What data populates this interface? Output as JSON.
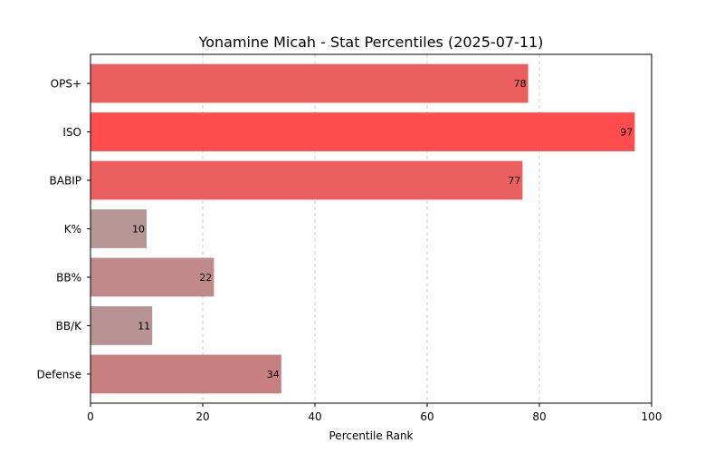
{
  "chart_data": {
    "type": "bar",
    "orientation": "horizontal",
    "title": "Yonamine Micah - Stat Percentiles (2025-07-11)",
    "xlabel": "Percentile Rank",
    "ylabel": "",
    "xlim": [
      0,
      100
    ],
    "xticks": [
      "0",
      "20",
      "40",
      "60",
      "80",
      "100"
    ],
    "grid": "vertical dashed",
    "categories": [
      "OPS+",
      "ISO",
      "BABIP",
      "K%",
      "BB%",
      "BB/K",
      "Defense"
    ],
    "values": [
      78,
      97,
      77,
      10,
      22,
      11,
      34
    ],
    "value_labels": [
      "78",
      "97",
      "77",
      "10",
      "22",
      "11",
      "34"
    ],
    "colors": [
      "#ec5f5f",
      "#ff4c4c",
      "#ec5f5f",
      "#b79696",
      "#c18a8a",
      "#b89393",
      "#c77f7f"
    ]
  }
}
